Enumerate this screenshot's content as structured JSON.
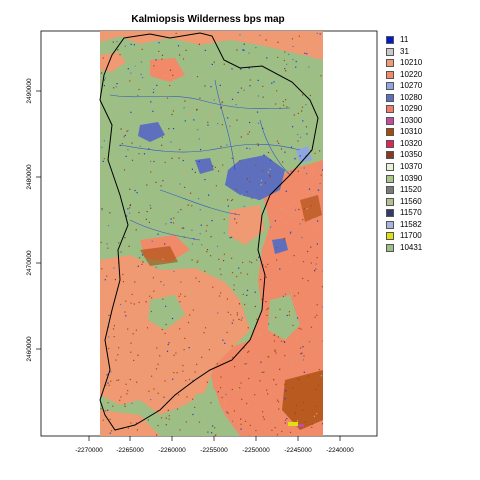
{
  "map": {
    "title": "Kalmiopsis Wilderness bps map",
    "x_ticks": [
      "-2270000",
      "-2265000",
      "-2260000",
      "-2255000",
      "-2250000",
      "-2245000",
      "-2240000"
    ],
    "y_ticks": [
      "2460000",
      "2470000",
      "2480000",
      "2490000"
    ]
  },
  "legend": [
    {
      "code": "11",
      "color": "#0019cc"
    },
    {
      "code": "31",
      "color": "#c8c8c8"
    },
    {
      "code": "10210",
      "color": "#ef9a72"
    },
    {
      "code": "10220",
      "color": "#f08a68"
    },
    {
      "code": "10270",
      "color": "#8fa6de"
    },
    {
      "code": "10280",
      "color": "#5d6fbd"
    },
    {
      "code": "10290",
      "color": "#f07e6a"
    },
    {
      "code": "10300",
      "color": "#c24d9a"
    },
    {
      "code": "10310",
      "color": "#a74a0a"
    },
    {
      "code": "10320",
      "color": "#e0245a"
    },
    {
      "code": "10350",
      "color": "#8a3a20"
    },
    {
      "code": "10370",
      "color": "#e6f2d8"
    },
    {
      "code": "10390",
      "color": "#a8c88a"
    },
    {
      "code": "11520",
      "color": "#7a7a7a"
    },
    {
      "code": "11560",
      "color": "#b0c090"
    },
    {
      "code": "11570",
      "color": "#34386a"
    },
    {
      "code": "11582",
      "color": "#a8b4d8"
    },
    {
      "code": "11700",
      "color": "#e0e010"
    },
    {
      "code": "10431",
      "color": "#9dbf86"
    }
  ]
}
